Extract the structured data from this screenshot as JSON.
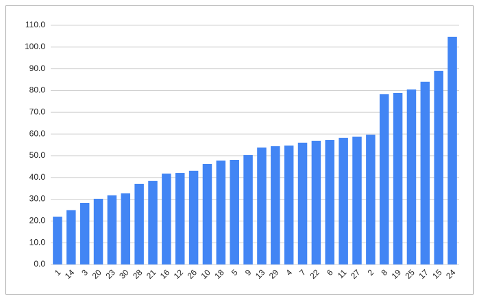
{
  "chart_data": {
    "type": "bar",
    "categories": [
      "1",
      "14",
      "3",
      "20",
      "23",
      "30",
      "28",
      "21",
      "16",
      "12",
      "26",
      "10",
      "18",
      "5",
      "9",
      "13",
      "29",
      "4",
      "7",
      "22",
      "6",
      "11",
      "27",
      "2",
      "8",
      "19",
      "25",
      "17",
      "15",
      "24"
    ],
    "values": [
      22,
      25,
      28.3,
      30.2,
      31.8,
      32.7,
      37.1,
      38.4,
      41.8,
      42.1,
      43.1,
      46.2,
      47.8,
      48.1,
      50.3,
      53.8,
      54.4,
      54.7,
      56,
      56.9,
      57.2,
      58.2,
      58.8,
      59.7,
      78.3,
      78.9,
      80.5,
      84,
      89,
      104.7
    ],
    "color": "#4285f4",
    "ylim": [
      0,
      110
    ],
    "yticks": [
      {
        "value": 0,
        "label": "0.0"
      },
      {
        "value": 10,
        "label": "10.0"
      },
      {
        "value": 20,
        "label": "20.0"
      },
      {
        "value": 30,
        "label": "30.0"
      },
      {
        "value": 40,
        "label": "40.0"
      },
      {
        "value": 50,
        "label": "50.0"
      },
      {
        "value": 60,
        "label": "60.0"
      },
      {
        "value": 70,
        "label": "70.0"
      },
      {
        "value": 80,
        "label": "80.0"
      },
      {
        "value": 90,
        "label": "90.0"
      },
      {
        "value": 100,
        "label": "100.0"
      },
      {
        "value": 110,
        "label": "110.0"
      }
    ],
    "grid": true
  }
}
